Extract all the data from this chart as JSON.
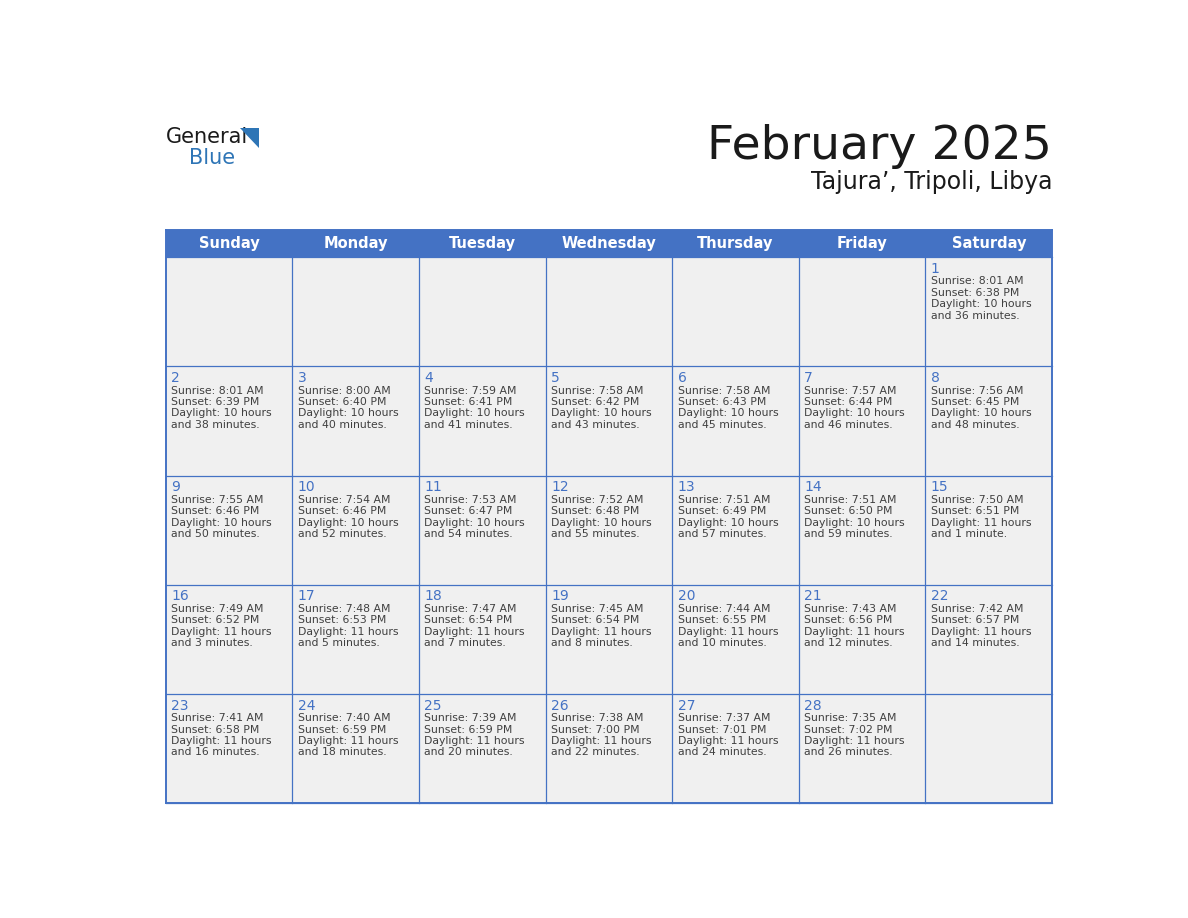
{
  "title": "February 2025",
  "subtitle": "Tajura’, Tripoli, Libya",
  "days_of_week": [
    "Sunday",
    "Monday",
    "Tuesday",
    "Wednesday",
    "Thursday",
    "Friday",
    "Saturday"
  ],
  "header_bg": "#4472C4",
  "header_text": "#FFFFFF",
  "cell_bg_light": "#F0F0F0",
  "day_number_color": "#4472C4",
  "text_color": "#404040",
  "border_color": "#4472C4",
  "calendar_data": [
    [
      null,
      null,
      null,
      null,
      null,
      null,
      {
        "day": 1,
        "sunrise": "8:01 AM",
        "sunset": "6:38 PM",
        "daylight": "10 hours and 36 minutes."
      }
    ],
    [
      {
        "day": 2,
        "sunrise": "8:01 AM",
        "sunset": "6:39 PM",
        "daylight": "10 hours and 38 minutes."
      },
      {
        "day": 3,
        "sunrise": "8:00 AM",
        "sunset": "6:40 PM",
        "daylight": "10 hours and 40 minutes."
      },
      {
        "day": 4,
        "sunrise": "7:59 AM",
        "sunset": "6:41 PM",
        "daylight": "10 hours and 41 minutes."
      },
      {
        "day": 5,
        "sunrise": "7:58 AM",
        "sunset": "6:42 PM",
        "daylight": "10 hours and 43 minutes."
      },
      {
        "day": 6,
        "sunrise": "7:58 AM",
        "sunset": "6:43 PM",
        "daylight": "10 hours and 45 minutes."
      },
      {
        "day": 7,
        "sunrise": "7:57 AM",
        "sunset": "6:44 PM",
        "daylight": "10 hours and 46 minutes."
      },
      {
        "day": 8,
        "sunrise": "7:56 AM",
        "sunset": "6:45 PM",
        "daylight": "10 hours and 48 minutes."
      }
    ],
    [
      {
        "day": 9,
        "sunrise": "7:55 AM",
        "sunset": "6:46 PM",
        "daylight": "10 hours and 50 minutes."
      },
      {
        "day": 10,
        "sunrise": "7:54 AM",
        "sunset": "6:46 PM",
        "daylight": "10 hours and 52 minutes."
      },
      {
        "day": 11,
        "sunrise": "7:53 AM",
        "sunset": "6:47 PM",
        "daylight": "10 hours and 54 minutes."
      },
      {
        "day": 12,
        "sunrise": "7:52 AM",
        "sunset": "6:48 PM",
        "daylight": "10 hours and 55 minutes."
      },
      {
        "day": 13,
        "sunrise": "7:51 AM",
        "sunset": "6:49 PM",
        "daylight": "10 hours and 57 minutes."
      },
      {
        "day": 14,
        "sunrise": "7:51 AM",
        "sunset": "6:50 PM",
        "daylight": "10 hours and 59 minutes."
      },
      {
        "day": 15,
        "sunrise": "7:50 AM",
        "sunset": "6:51 PM",
        "daylight": "11 hours and 1 minute."
      }
    ],
    [
      {
        "day": 16,
        "sunrise": "7:49 AM",
        "sunset": "6:52 PM",
        "daylight": "11 hours and 3 minutes."
      },
      {
        "day": 17,
        "sunrise": "7:48 AM",
        "sunset": "6:53 PM",
        "daylight": "11 hours and 5 minutes."
      },
      {
        "day": 18,
        "sunrise": "7:47 AM",
        "sunset": "6:54 PM",
        "daylight": "11 hours and 7 minutes."
      },
      {
        "day": 19,
        "sunrise": "7:45 AM",
        "sunset": "6:54 PM",
        "daylight": "11 hours and 8 minutes."
      },
      {
        "day": 20,
        "sunrise": "7:44 AM",
        "sunset": "6:55 PM",
        "daylight": "11 hours and 10 minutes."
      },
      {
        "day": 21,
        "sunrise": "7:43 AM",
        "sunset": "6:56 PM",
        "daylight": "11 hours and 12 minutes."
      },
      {
        "day": 22,
        "sunrise": "7:42 AM",
        "sunset": "6:57 PM",
        "daylight": "11 hours and 14 minutes."
      }
    ],
    [
      {
        "day": 23,
        "sunrise": "7:41 AM",
        "sunset": "6:58 PM",
        "daylight": "11 hours and 16 minutes."
      },
      {
        "day": 24,
        "sunrise": "7:40 AM",
        "sunset": "6:59 PM",
        "daylight": "11 hours and 18 minutes."
      },
      {
        "day": 25,
        "sunrise": "7:39 AM",
        "sunset": "6:59 PM",
        "daylight": "11 hours and 20 minutes."
      },
      {
        "day": 26,
        "sunrise": "7:38 AM",
        "sunset": "7:00 PM",
        "daylight": "11 hours and 22 minutes."
      },
      {
        "day": 27,
        "sunrise": "7:37 AM",
        "sunset": "7:01 PM",
        "daylight": "11 hours and 24 minutes."
      },
      {
        "day": 28,
        "sunrise": "7:35 AM",
        "sunset": "7:02 PM",
        "daylight": "11 hours and 26 minutes."
      },
      null
    ]
  ]
}
